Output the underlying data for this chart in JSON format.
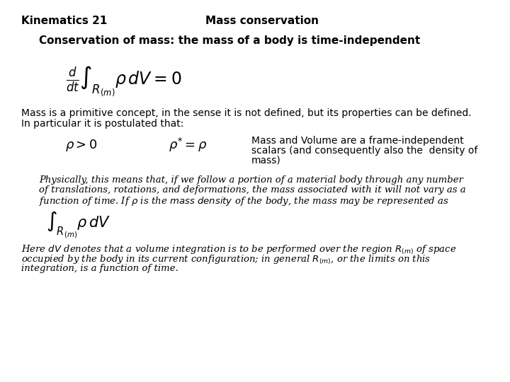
{
  "bg_color": "#ffffff",
  "header_left": "Kinematics 21",
  "header_center": "Mass conservation",
  "subtitle": "Conservation of mass: the mass of a body is time-independent",
  "side_text_line1": "Mass and Volume are a frame-independent",
  "side_text_line2": "scalars (and consequently also the  density of",
  "side_text_line3": "mass)",
  "body_text1_line1": "Mass is a primitive concept, in the sense it is not defined, but its properties can be defined.",
  "body_text1_line2": "In particular it is postulated that:",
  "phys_line1": "Physically, this means that, if we follow a portion of a material body through any number",
  "phys_line2": "of translations, rotations, and deformations, the mass associated with it will not vary as a",
  "phys_line3": "function of time. If $\\rho$ is the $\\mathit{mass\\ density}$ of the body, the mass may be represented as",
  "here_line1": "Here $dV$ denotes that a volume integration is to be performed over the region $R_{(m)}$ of space",
  "here_line2": "occupied by the body in its current configuration; in general $R_{(m)}$, or the limits on this",
  "here_line3": "integration, is a function of time."
}
